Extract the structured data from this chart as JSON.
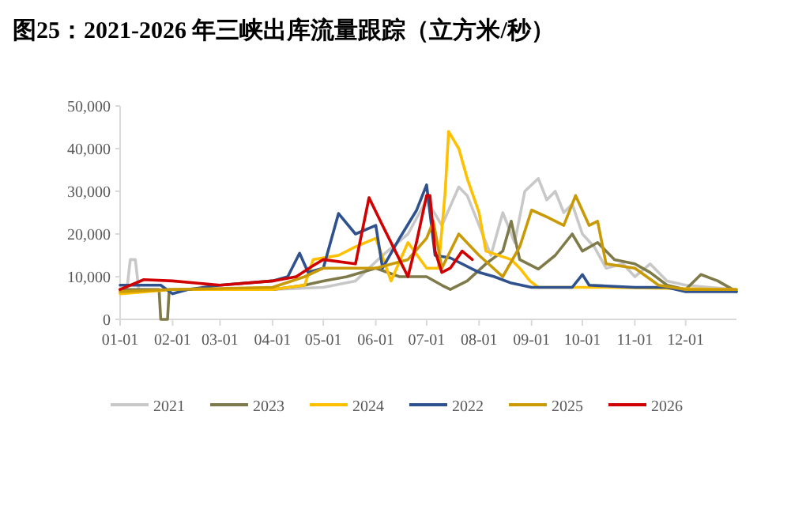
{
  "chart_data": {
    "type": "line",
    "title": "图25：2021-2026 年三峡出库流量跟踪（立方米/秒）",
    "xlim": [
      "--01-01",
      "--12-31"
    ],
    "xticks": [
      {
        "value": "--01-01",
        "label": "01-01"
      },
      {
        "value": "--02-01",
        "label": "02-01"
      },
      {
        "value": "--03-01",
        "label": "03-01"
      },
      {
        "value": "--04-01",
        "label": "04-01"
      },
      {
        "value": "--05-01",
        "label": "05-01"
      },
      {
        "value": "--06-01",
        "label": "06-01"
      },
      {
        "value": "--07-01",
        "label": "07-01"
      },
      {
        "value": "--08-01",
        "label": "08-01"
      },
      {
        "value": "--09-01",
        "label": "09-01"
      },
      {
        "value": "--10-01",
        "label": "10-01"
      },
      {
        "value": "--11-01",
        "label": "11-01"
      },
      {
        "value": "--12-01",
        "label": "12-01"
      }
    ],
    "ylim": [
      0,
      50000
    ],
    "yticks": [
      0,
      {
        "value": 10000,
        "label": "10,000"
      },
      {
        "value": 20000,
        "label": "20,000"
      },
      {
        "value": 30000,
        "label": "30,000"
      },
      {
        "value": 40000,
        "label": "40,000"
      },
      {
        "value": 50000,
        "label": "50,000"
      }
    ],
    "grid": false,
    "legend": "bottom",
    "marker": "none",
    "line_style": "solid",
    "series": [
      {
        "name": "2021",
        "color": "#c8c8c8",
        "x": [
          "--01-01",
          "--01-05",
          "--01-07",
          "--01-10",
          "--01-12",
          "--02-15",
          "--04-01",
          "--05-01",
          "--05-20",
          "--06-05",
          "--06-20",
          "--07-01",
          "--07-10",
          "--07-20",
          "--07-25",
          "--08-01",
          "--08-08",
          "--08-15",
          "--08-22",
          "--08-28",
          "--09-05",
          "--09-10",
          "--09-15",
          "--09-20",
          "--09-25",
          "--10-01",
          "--10-08",
          "--10-15",
          "--10-25",
          "--11-01",
          "--11-10",
          "--11-20",
          "--12-01",
          "--12-15",
          "--12-31"
        ],
        "values": [
          7000,
          7000,
          14000,
          14000,
          7000,
          7000,
          7000,
          7500,
          9000,
          15000,
          20000,
          28000,
          22000,
          31000,
          29000,
          22000,
          15000,
          25000,
          18000,
          30000,
          33000,
          28000,
          30000,
          25000,
          27000,
          20000,
          17000,
          12000,
          13000,
          10000,
          13000,
          9000,
          8000,
          7500,
          7000
        ]
      },
      {
        "name": "2023",
        "color": "#7f7a4a",
        "x": [
          "--01-01",
          "--01-20",
          "--01-24",
          "--01-25",
          "--01-29",
          "--01-30",
          "--03-01",
          "--04-01",
          "--04-20",
          "--05-01",
          "--05-15",
          "--06-01",
          "--06-15",
          "--07-01",
          "--07-10",
          "--07-15",
          "--07-25",
          "--08-05",
          "--08-15",
          "--08-20",
          "--08-25",
          "--09-05",
          "--09-15",
          "--09-25",
          "--10-01",
          "--10-10",
          "--10-20",
          "--11-01",
          "--11-10",
          "--11-20",
          "--12-01",
          "--12-10",
          "--12-20",
          "--12-31"
        ],
        "values": [
          7000,
          7000,
          7000,
          0,
          0,
          7000,
          7000,
          7000,
          8000,
          9000,
          10000,
          12000,
          10000,
          10000,
          8000,
          7000,
          9000,
          13000,
          16000,
          23000,
          14000,
          11800,
          15000,
          20000,
          16000,
          18000,
          14000,
          13000,
          11000,
          8000,
          7000,
          10500,
          9000,
          6500
        ]
      },
      {
        "name": "2024",
        "color": "#ffc000",
        "x": [
          "--01-01",
          "--02-01",
          "--04-01",
          "--04-20",
          "--04-25",
          "--05-10",
          "--05-20",
          "--06-01",
          "--06-10",
          "--06-20",
          "--07-01",
          "--07-08",
          "--07-12",
          "--07-14",
          "--07-20",
          "--07-25",
          "--08-01",
          "--08-05",
          "--08-20",
          "--08-25",
          "--08-31",
          "--09-05",
          "--10-15",
          "--12-31"
        ],
        "values": [
          6000,
          7000,
          7000,
          8000,
          14000,
          15000,
          17000,
          19000,
          9000,
          18000,
          12000,
          12000,
          30000,
          44000,
          40000,
          33000,
          25000,
          16000,
          14000,
          12000,
          9000,
          7500,
          7500,
          7000
        ]
      },
      {
        "name": "2022",
        "color": "#2f528f",
        "x": [
          "--01-01",
          "--01-25",
          "--02-01",
          "--02-10",
          "--03-01",
          "--04-01",
          "--04-10",
          "--04-17",
          "--04-22",
          "--05-01",
          "--05-10",
          "--05-20",
          "--06-01",
          "--06-05",
          "--06-15",
          "--06-25",
          "--07-01",
          "--07-06",
          "--07-15",
          "--08-01",
          "--08-10",
          "--08-20",
          "--09-01",
          "--09-25",
          "--10-01",
          "--10-05",
          "--11-01",
          "--11-20",
          "--12-01",
          "--12-31"
        ],
        "values": [
          8000,
          8000,
          6000,
          7000,
          8000,
          9000,
          10000,
          15500,
          11000,
          12000,
          24800,
          20000,
          22000,
          12000,
          19000,
          25500,
          31500,
          15000,
          14400,
          11000,
          10000,
          8500,
          7500,
          7500,
          10500,
          8000,
          7500,
          7500,
          6500,
          6500
        ]
      },
      {
        "name": "2025",
        "color": "#c99a06",
        "x": [
          "--01-01",
          "--02-01",
          "--04-01",
          "--04-20",
          "--05-01",
          "--06-01",
          "--06-20",
          "--07-01",
          "--07-05",
          "--07-10",
          "--07-20",
          "--08-01",
          "--08-15",
          "--08-25",
          "--09-01",
          "--09-10",
          "--09-20",
          "--09-27",
          "--10-05",
          "--10-10",
          "--10-15",
          "--11-01",
          "--11-15",
          "--12-01",
          "--12-31"
        ],
        "values": [
          6500,
          7000,
          7500,
          10000,
          12000,
          12000,
          14000,
          19000,
          23000,
          12000,
          20000,
          15000,
          10000,
          17000,
          25600,
          24000,
          22000,
          29000,
          22000,
          23000,
          13000,
          12000,
          8000,
          7000,
          7000
        ]
      },
      {
        "name": "2026",
        "color": "#d00000",
        "x": [
          "--01-01",
          "--01-15",
          "--02-01",
          "--03-01",
          "--04-01",
          "--04-15",
          "--04-25",
          "--05-01",
          "--05-20",
          "--05-28",
          "--06-05",
          "--06-15",
          "--06-20",
          "--06-25",
          "--07-01",
          "--07-03",
          "--07-06",
          "--07-10",
          "--07-15",
          "--07-22",
          "--07-28"
        ],
        "values": [
          7000,
          9300,
          9000,
          8000,
          9000,
          10000,
          12600,
          14000,
          13000,
          28500,
          22000,
          14000,
          10000,
          18000,
          29000,
          29000,
          16000,
          11000,
          12000,
          16000,
          14000
        ]
      }
    ]
  }
}
